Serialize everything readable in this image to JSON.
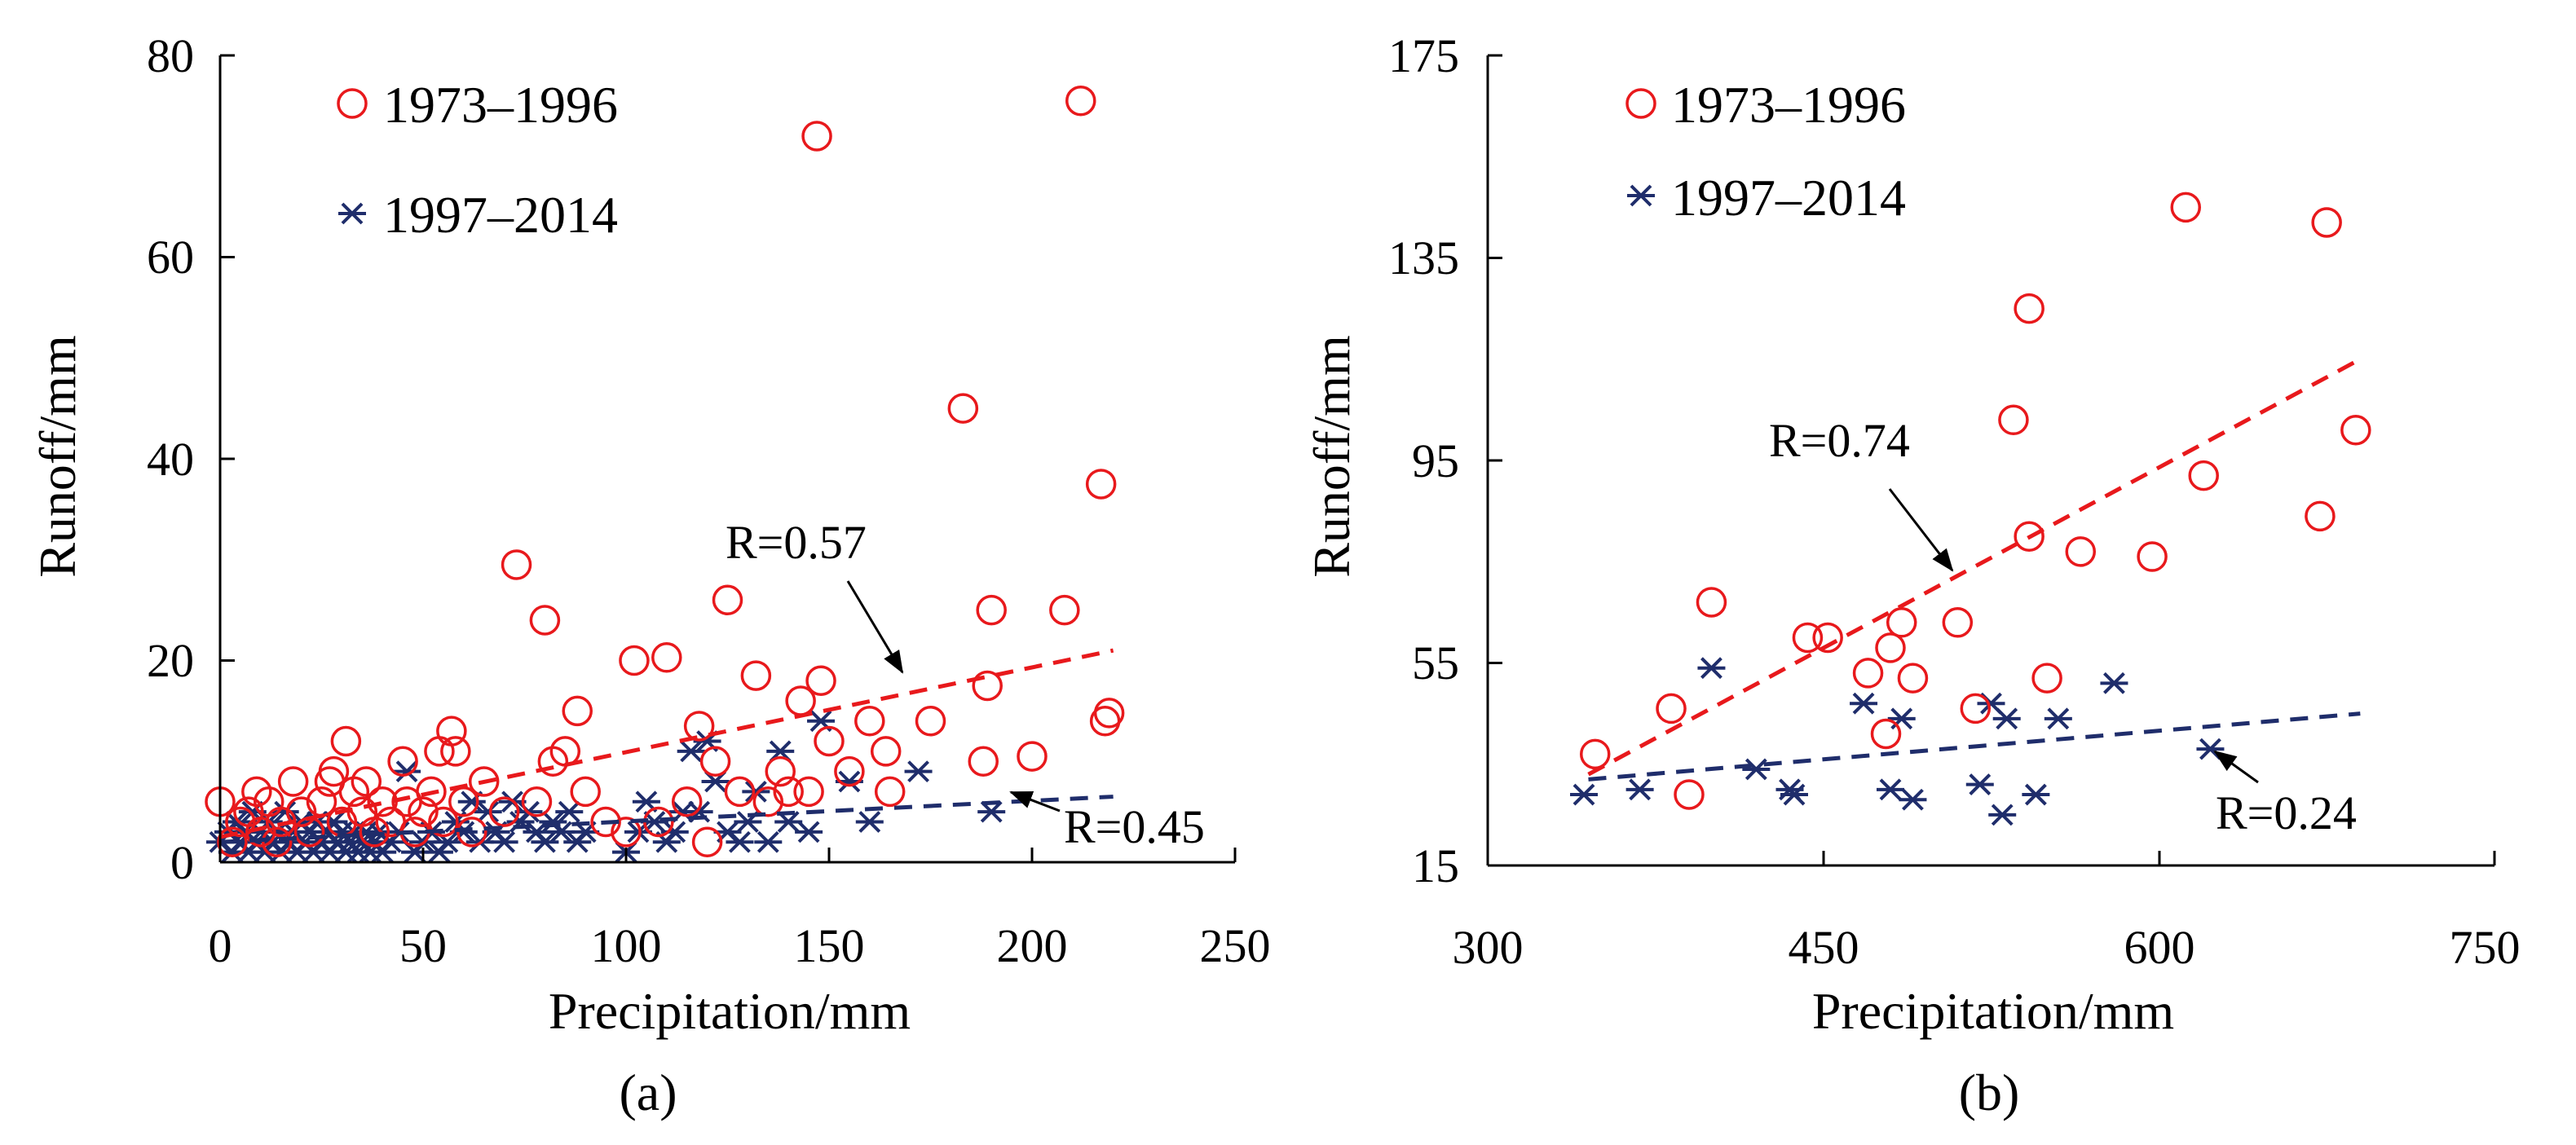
{
  "colors": {
    "series_1973": "#e8191c",
    "series_1997": "#1f2d6b",
    "axis": "#000000"
  },
  "chart_data": [
    {
      "type": "scatter",
      "panel_label": "(a)",
      "xlabel": "Precipitation/mm",
      "ylabel": "Runoff/mm",
      "xlim": [
        0,
        250
      ],
      "ylim": [
        0,
        80
      ],
      "x_ticks": [
        "0",
        "50",
        "100",
        "150",
        "200",
        "250"
      ],
      "y_ticks": [
        "0",
        "20",
        "40",
        "60",
        "80"
      ],
      "legend": {
        "placement": "top-left",
        "entries": [
          "1973–1996",
          "1997–2014"
        ]
      },
      "series": [
        {
          "name": "1973–1996",
          "marker": "circle",
          "trendline": {
            "x": [
              0,
              220
            ],
            "y": [
              2.5,
              21
            ],
            "label": "R=0.57"
          },
          "points": [
            [
              0,
              6
            ],
            [
              3,
              2
            ],
            [
              5,
              4
            ],
            [
              7,
              5
            ],
            [
              9,
              7
            ],
            [
              10,
              3
            ],
            [
              12,
              6
            ],
            [
              14,
              2
            ],
            [
              15,
              4
            ],
            [
              18,
              8
            ],
            [
              20,
              5
            ],
            [
              22,
              3
            ],
            [
              25,
              6
            ],
            [
              27,
              8
            ],
            [
              28,
              9
            ],
            [
              30,
              4
            ],
            [
              31,
              12
            ],
            [
              33,
              7
            ],
            [
              35,
              5
            ],
            [
              36,
              8
            ],
            [
              38,
              3
            ],
            [
              40,
              6
            ],
            [
              42,
              4
            ],
            [
              45,
              10
            ],
            [
              46,
              6
            ],
            [
              48,
              3
            ],
            [
              50,
              5
            ],
            [
              52,
              7
            ],
            [
              54,
              11
            ],
            [
              55,
              4
            ],
            [
              57,
              13
            ],
            [
              58,
              11
            ],
            [
              60,
              6
            ],
            [
              62,
              3
            ],
            [
              65,
              8
            ],
            [
              70,
              5
            ],
            [
              73,
              29.5
            ],
            [
              78,
              6
            ],
            [
              80,
              24
            ],
            [
              82,
              10
            ],
            [
              85,
              11
            ],
            [
              88,
              15
            ],
            [
              90,
              7
            ],
            [
              95,
              4
            ],
            [
              100,
              3
            ],
            [
              102,
              20
            ],
            [
              108,
              4
            ],
            [
              110,
              20.3
            ],
            [
              115,
              6
            ],
            [
              118,
              13.5
            ],
            [
              120,
              2
            ],
            [
              122,
              10
            ],
            [
              125,
              26
            ],
            [
              128,
              7
            ],
            [
              132,
              18.5
            ],
            [
              135,
              6
            ],
            [
              138,
              9
            ],
            [
              140,
              7
            ],
            [
              143,
              16
            ],
            [
              145,
              7
            ],
            [
              147,
              72
            ],
            [
              148,
              18
            ],
            [
              150,
              12
            ],
            [
              155,
              9
            ],
            [
              160,
              14
            ],
            [
              164,
              11
            ],
            [
              165,
              7
            ],
            [
              175,
              14
            ],
            [
              183,
              45
            ],
            [
              188,
              10
            ],
            [
              189,
              17.5
            ],
            [
              190,
              25
            ],
            [
              200,
              10.5
            ],
            [
              208,
              25
            ],
            [
              212,
              75.5
            ],
            [
              217,
              37.5
            ],
            [
              218,
              14
            ],
            [
              219,
              14.8
            ]
          ]
        },
        {
          "name": "1997–2014",
          "marker": "asterisk",
          "trendline": {
            "x": [
              0,
              220
            ],
            "y": [
              2,
              6.5
            ],
            "label": "R=0.45"
          },
          "points": [
            [
              0,
              2
            ],
            [
              2,
              3
            ],
            [
              3,
              1
            ],
            [
              4,
              4
            ],
            [
              5,
              2
            ],
            [
              6,
              3
            ],
            [
              7,
              1
            ],
            [
              8,
              5
            ],
            [
              9,
              2
            ],
            [
              10,
              3
            ],
            [
              11,
              1
            ],
            [
              12,
              4
            ],
            [
              13,
              2
            ],
            [
              14,
              3
            ],
            [
              15,
              1
            ],
            [
              16,
              5
            ],
            [
              17,
              2
            ],
            [
              18,
              3
            ],
            [
              19,
              1
            ],
            [
              20,
              4
            ],
            [
              21,
              2
            ],
            [
              22,
              3
            ],
            [
              23,
              1
            ],
            [
              24,
              4
            ],
            [
              25,
              2
            ],
            [
              26,
              3
            ],
            [
              27,
              1
            ],
            [
              28,
              4
            ],
            [
              29,
              2
            ],
            [
              30,
              3
            ],
            [
              31,
              1
            ],
            [
              32,
              2
            ],
            [
              33,
              3
            ],
            [
              34,
              1
            ],
            [
              35,
              2
            ],
            [
              36,
              3
            ],
            [
              37,
              1
            ],
            [
              38,
              2
            ],
            [
              39,
              3
            ],
            [
              40,
              1
            ],
            [
              42,
              2
            ],
            [
              44,
              3
            ],
            [
              46,
              9
            ],
            [
              48,
              1
            ],
            [
              50,
              2
            ],
            [
              52,
              3
            ],
            [
              54,
              1
            ],
            [
              56,
              2
            ],
            [
              58,
              4
            ],
            [
              60,
              3
            ],
            [
              62,
              6
            ],
            [
              64,
              2
            ],
            [
              66,
              5
            ],
            [
              68,
              3
            ],
            [
              70,
              2
            ],
            [
              72,
              6
            ],
            [
              74,
              4
            ],
            [
              76,
              5
            ],
            [
              78,
              3
            ],
            [
              80,
              2
            ],
            [
              82,
              4
            ],
            [
              84,
              3
            ],
            [
              86,
              5
            ],
            [
              88,
              2
            ],
            [
              90,
              3
            ],
            [
              100,
              1
            ],
            [
              103,
              3
            ],
            [
              105,
              6
            ],
            [
              107,
              4
            ],
            [
              110,
              2
            ],
            [
              112,
              3
            ],
            [
              114,
              5
            ],
            [
              116,
              11
            ],
            [
              118,
              5
            ],
            [
              120,
              12
            ],
            [
              122,
              8
            ],
            [
              125,
              3
            ],
            [
              128,
              2
            ],
            [
              130,
              4
            ],
            [
              132,
              7
            ],
            [
              135,
              2
            ],
            [
              138,
              11
            ],
            [
              140,
              4
            ],
            [
              145,
              3
            ],
            [
              148,
              14
            ],
            [
              155,
              8
            ],
            [
              160,
              4
            ],
            [
              172,
              9
            ],
            [
              190,
              5
            ]
          ]
        }
      ]
    },
    {
      "type": "scatter",
      "panel_label": "(b)",
      "xlabel": "Precipitation/mm",
      "ylabel": "Runoff/mm",
      "xlim": [
        300,
        750
      ],
      "ylim": [
        15,
        175
      ],
      "x_ticks": [
        "300",
        "450",
        "600",
        "750"
      ],
      "y_ticks": [
        "15",
        "55",
        "95",
        "135",
        "175"
      ],
      "legend": {
        "placement": "top-left",
        "entries": [
          "1973–1996",
          "1997–2014"
        ]
      },
      "series": [
        {
          "name": "1973–1996",
          "marker": "circle",
          "trendline": {
            "x": [
              345,
              690
            ],
            "y": [
              33,
              115
            ],
            "label": "R=0.74"
          },
          "points": [
            [
              348,
              37
            ],
            [
              382,
              46
            ],
            [
              390,
              29
            ],
            [
              400,
              67
            ],
            [
              443,
              60
            ],
            [
              452,
              60
            ],
            [
              470,
              53
            ],
            [
              478,
              41
            ],
            [
              480,
              58
            ],
            [
              485,
              63
            ],
            [
              490,
              52
            ],
            [
              510,
              63
            ],
            [
              518,
              46
            ],
            [
              535,
              103
            ],
            [
              542,
              125
            ],
            [
              542,
              80
            ],
            [
              550,
              52
            ],
            [
              565,
              77
            ],
            [
              597,
              76
            ],
            [
              612,
              145
            ],
            [
              620,
              92
            ],
            [
              672,
              84
            ],
            [
              675,
              142
            ],
            [
              688,
              101
            ]
          ]
        },
        {
          "name": "1997–2014",
          "marker": "asterisk",
          "trendline": {
            "x": [
              345,
              690
            ],
            "y": [
              32,
              45
            ],
            "label": "R=0.24"
          },
          "points": [
            [
              343,
              29
            ],
            [
              368,
              30
            ],
            [
              400,
              54
            ],
            [
              420,
              34
            ],
            [
              435,
              30
            ],
            [
              437,
              29
            ],
            [
              468,
              47
            ],
            [
              480,
              30
            ],
            [
              485,
              44
            ],
            [
              490,
              28
            ],
            [
              520,
              31
            ],
            [
              525,
              47
            ],
            [
              530,
              25
            ],
            [
              532,
              44
            ],
            [
              545,
              29
            ],
            [
              555,
              44
            ],
            [
              580,
              51
            ],
            [
              623,
              38
            ]
          ]
        }
      ]
    }
  ]
}
